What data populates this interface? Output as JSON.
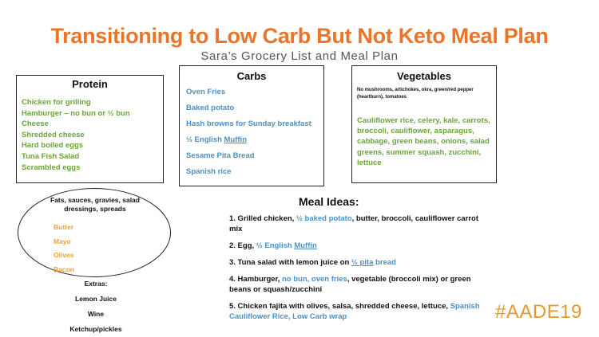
{
  "header": {
    "title": "Transitioning to Low Carb But Not Keto Meal Plan",
    "subtitle": "Sara’s Grocery List and Meal Plan"
  },
  "colors": {
    "title": "#e8752a",
    "green": "#6aa43b",
    "blue": "#4a90c8",
    "orange": "#e8a23a",
    "logo": "#e39a33"
  },
  "protein": {
    "heading": "Protein",
    "items": [
      "Chicken for grilling",
      "Hamburger – no bun or ½ bun",
      "Cheese",
      "Shredded cheese",
      "Hard boiled eggs",
      "Tuna Fish Salad",
      "Scrambled eggs"
    ]
  },
  "carbs": {
    "heading": "Carbs",
    "items": [
      "Oven Fries",
      "Baked potato",
      "Hash browns for Sunday breakfast",
      "½ English ",
      "Muffin",
      "Sesame Pita Bread",
      "Spanish rice"
    ]
  },
  "vegetables": {
    "heading": "Vegetables",
    "note": "No mushrooms, artichokes, okra, green/red pepper (heartburn), tomatoes",
    "items": "Cauliflower rice, celery, kale, carrots, broccoli, cauliflower, asparagus, cabbage, green beans, onions, salad greens, summer squash, zucchini, lettuce"
  },
  "fats": {
    "heading": "Fats, sauces, gravies, salad dressings, spreads",
    "items": [
      "Butter",
      "Mayo",
      "Olives",
      "Bacon"
    ]
  },
  "extras": {
    "heading": "Extras:",
    "items": [
      "Lemon Juice",
      "Wine",
      "Ketchup/pickles"
    ]
  },
  "meals": {
    "heading": "Meal Ideas:",
    "m1a": "1. Grilled chicken, ",
    "m1b": "½ baked potato",
    "m1c": ", butter, broccoli, cauliflower carrot mix",
    "m2a": "2. Egg, ",
    "m2b": "½ English ",
    "m2c": "Muffin",
    "m3a": "3. Tuna salad with lemon juice on ",
    "m3b": "½ pita",
    "m3c": " bread",
    "m4a": "4. Hamburger, ",
    "m4b": "no bun, oven fries",
    "m4c": ", vegetable (broccoli mix) or green beans or squash/zucchini",
    "m5a": "5. Chicken fajita with olives, salsa, shredded cheese, lettuce, ",
    "m5b": "Spanish Cauliflower Rice, Low Carb wrap"
  },
  "logo": {
    "text": "#AADE19"
  }
}
